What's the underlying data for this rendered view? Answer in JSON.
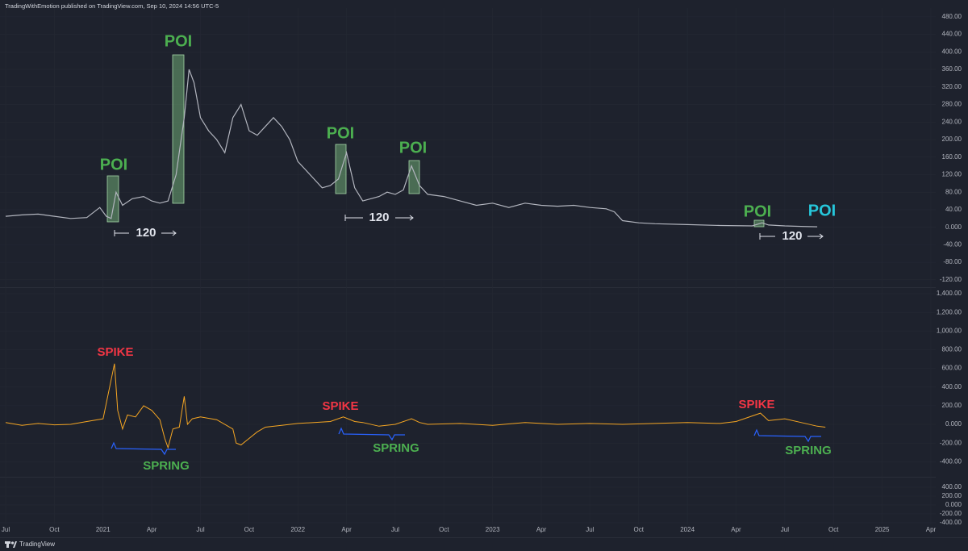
{
  "header": {
    "text": "TradingWithEmotion published on TradingView.com, Sep 10, 2024 14:56 UTC-5"
  },
  "footer": {
    "text": "TradingView"
  },
  "chart_data": [
    {
      "type": "line",
      "ylim": [
        -135,
        500
      ],
      "yticks": [
        {
          "value": 480,
          "label": "480.00"
        },
        {
          "value": 440,
          "label": "440.00"
        },
        {
          "value": 400,
          "label": "400.00"
        },
        {
          "value": 360,
          "label": "360.00"
        },
        {
          "value": 320,
          "label": "320.00"
        },
        {
          "value": 280,
          "label": "280.00"
        },
        {
          "value": 240,
          "label": "240.00"
        },
        {
          "value": 200,
          "label": "200.00"
        },
        {
          "value": 160,
          "label": "160.00"
        },
        {
          "value": 120,
          "label": "120.00"
        },
        {
          "value": 80,
          "label": "80.00"
        },
        {
          "value": 40,
          "label": "40.00"
        },
        {
          "value": 0,
          "label": "0.000"
        },
        {
          "value": -40,
          "label": "-40.00"
        },
        {
          "value": -80,
          "label": "-80.00"
        },
        {
          "value": -120,
          "label": "-120.00"
        }
      ],
      "series": [
        {
          "color": "#b2b5be",
          "x": [
            0,
            1,
            2,
            3,
            4,
            5,
            5.8,
            6.2,
            6.5,
            6.8,
            7.2,
            7.8,
            8.5,
            9,
            9.5,
            10,
            10.5,
            11,
            11.3,
            11.6,
            12,
            12.5,
            13,
            13.5,
            14,
            14.5,
            15,
            15.5,
            16,
            16.5,
            17,
            17.5,
            18,
            18.5,
            19,
            19.5,
            20,
            20.5,
            21,
            21.5,
            22,
            22.5,
            23,
            23.5,
            24,
            24.5,
            25,
            25.5,
            26,
            27,
            28,
            29,
            30,
            31,
            32,
            33,
            34,
            35,
            36,
            37,
            37.5,
            38,
            39,
            40,
            42,
            44,
            46,
            46.6,
            47,
            48,
            49,
            50
          ],
          "values": [
            25,
            28,
            30,
            25,
            20,
            22,
            45,
            25,
            20,
            80,
            50,
            65,
            70,
            60,
            55,
            60,
            120,
            250,
            360,
            330,
            250,
            220,
            200,
            170,
            250,
            280,
            220,
            210,
            230,
            250,
            230,
            200,
            150,
            130,
            110,
            90,
            95,
            110,
            170,
            90,
            60,
            65,
            70,
            80,
            75,
            85,
            140,
            95,
            75,
            70,
            60,
            50,
            55,
            45,
            55,
            50,
            48,
            50,
            45,
            42,
            35,
            15,
            10,
            8,
            6,
            4,
            3,
            10,
            5,
            3,
            2,
            1
          ]
        }
      ],
      "annotations": [
        {
          "text": "POI",
          "color": "#4caf50"
        },
        {
          "text": "POI",
          "color": "#4caf50"
        },
        {
          "text": "POI",
          "color": "#4caf50"
        },
        {
          "text": "POI",
          "color": "#4caf50"
        },
        {
          "text": "POI",
          "color": "#4caf50"
        },
        {
          "text": "POI",
          "color": "#26c6da"
        },
        {
          "text": "120",
          "color": "#e0e3eb"
        },
        {
          "text": "120",
          "color": "#e0e3eb"
        },
        {
          "text": "120",
          "color": "#e0e3eb"
        }
      ]
    },
    {
      "type": "line",
      "ylim": [
        -553,
        1452
      ],
      "yticks": [
        {
          "value": 1400,
          "label": "1,400.00"
        },
        {
          "value": 1200,
          "label": "1,200.00"
        },
        {
          "value": 1000,
          "label": "1,000.00"
        },
        {
          "value": 800,
          "label": "800.00"
        },
        {
          "value": 600,
          "label": "600.00"
        },
        {
          "value": 400,
          "label": "400.00"
        },
        {
          "value": 200,
          "label": "200.00"
        },
        {
          "value": 0,
          "label": "0.000"
        },
        {
          "value": -200,
          "label": "-200.00"
        },
        {
          "value": -400,
          "label": "-400.00"
        }
      ],
      "series": [
        {
          "color": "#f5a623",
          "x": [
            0,
            1,
            2,
            3,
            4,
            5,
            6,
            6.7,
            6.9,
            7.2,
            7.5,
            8,
            8.5,
            9,
            9.5,
            9.8,
            10,
            10.3,
            10.7,
            11,
            11.2,
            11.5,
            12,
            13,
            14,
            14.2,
            14.5,
            15,
            15.5,
            16,
            17,
            18,
            19,
            20,
            20.8,
            21.5,
            22,
            23,
            24,
            25,
            25.5,
            26,
            28,
            30,
            32,
            34,
            36,
            38,
            40,
            42,
            44,
            45,
            46.5,
            47,
            48,
            49,
            50,
            50.5
          ],
          "values": [
            20,
            -10,
            10,
            -5,
            0,
            30,
            60,
            650,
            150,
            -50,
            100,
            80,
            200,
            150,
            50,
            -150,
            -250,
            -50,
            -30,
            300,
            0,
            60,
            80,
            50,
            -50,
            -200,
            -220,
            -150,
            -80,
            -30,
            -10,
            10,
            20,
            30,
            80,
            30,
            20,
            -20,
            0,
            60,
            20,
            0,
            10,
            -10,
            20,
            0,
            10,
            0,
            10,
            20,
            10,
            30,
            120,
            40,
            60,
            20,
            -20,
            -30
          ]
        }
      ],
      "annotations": [
        {
          "text": "SPIKE",
          "color": "#f23645"
        },
        {
          "text": "SPIKE",
          "color": "#f23645"
        },
        {
          "text": "SPIKE",
          "color": "#f23645"
        },
        {
          "text": "SPRING",
          "color": "#4caf50"
        },
        {
          "text": "SPRING",
          "color": "#4caf50"
        },
        {
          "text": "SPRING",
          "color": "#4caf50"
        }
      ]
    },
    {
      "type": "line",
      "ylim": [
        -655,
        618
      ],
      "yticks": [
        {
          "value": 400,
          "label": "400.00"
        },
        {
          "value": 200,
          "label": "200.00"
        },
        {
          "value": 0,
          "label": "0.000"
        },
        {
          "value": -200,
          "label": "-200.00"
        },
        {
          "value": -400,
          "label": "-400.00"
        }
      ],
      "series": [],
      "xlim": [
        -0.35,
        57.3
      ],
      "xticks": [
        {
          "value": 0,
          "label": "Jul"
        },
        {
          "value": 3,
          "label": "Oct"
        },
        {
          "value": 6,
          "label": "2021"
        },
        {
          "value": 9,
          "label": "Apr"
        },
        {
          "value": 12,
          "label": "Jul"
        },
        {
          "value": 15,
          "label": "Oct"
        },
        {
          "value": 18,
          "label": "2022"
        },
        {
          "value": 21,
          "label": "Apr"
        },
        {
          "value": 24,
          "label": "Jul"
        },
        {
          "value": 27,
          "label": "Oct"
        },
        {
          "value": 30,
          "label": "2023"
        },
        {
          "value": 33,
          "label": "Apr"
        },
        {
          "value": 36,
          "label": "Jul"
        },
        {
          "value": 39,
          "label": "Oct"
        },
        {
          "value": 42,
          "label": "2024"
        },
        {
          "value": 45,
          "label": "Apr"
        },
        {
          "value": 48,
          "label": "Jul"
        },
        {
          "value": 51,
          "label": "Oct"
        },
        {
          "value": 54,
          "label": "2025"
        },
        {
          "value": 57,
          "label": "Apr"
        }
      ]
    }
  ]
}
